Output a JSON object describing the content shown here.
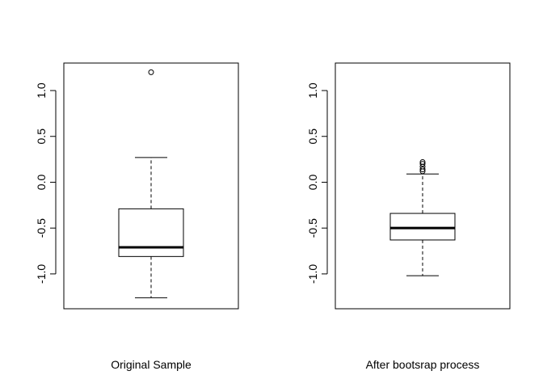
{
  "chart_data": [
    {
      "type": "boxplot",
      "xlabel": "Original Sample",
      "ylim": [
        -1.38,
        1.3
      ],
      "yticks": [
        -1.0,
        -0.5,
        0.0,
        0.5,
        1.0
      ],
      "ytick_labels": [
        "-1.0",
        "-0.5",
        "0.0",
        "0.5",
        "1.0"
      ],
      "box": {
        "whisker_low": -1.26,
        "q1": -0.81,
        "median": -0.71,
        "q3": -0.29,
        "whisker_high": 0.27,
        "outliers": [
          1.2
        ]
      }
    },
    {
      "type": "boxplot",
      "xlabel": "After bootsrap process",
      "ylim": [
        -1.38,
        1.3
      ],
      "yticks": [
        -1.0,
        -0.5,
        0.0,
        0.5,
        1.0
      ],
      "ytick_labels": [
        "-1.0",
        "-0.5",
        "0.0",
        "0.5",
        "1.0"
      ],
      "box": {
        "whisker_low": -1.02,
        "q1": -0.63,
        "median": -0.5,
        "q3": -0.34,
        "whisker_high": 0.09,
        "outliers": [
          0.12,
          0.14,
          0.17,
          0.2,
          0.22
        ]
      }
    }
  ]
}
